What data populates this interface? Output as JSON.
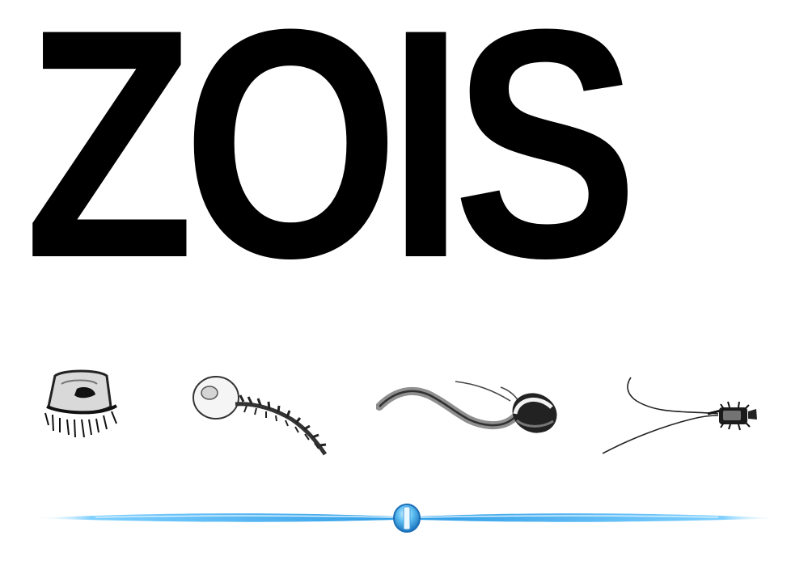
{
  "logo": {
    "title": "ZOIS"
  },
  "illustrations": [
    {
      "name": "bell-shaped-organism"
    },
    {
      "name": "stalked-organism"
    },
    {
      "name": "long-tailed-organism"
    },
    {
      "name": "whip-tailed-organism"
    }
  ],
  "colors": {
    "title_text": "#000000",
    "background": "#ffffff",
    "divider_accent": "#2f9de6",
    "divider_light": "#bfe6ff"
  }
}
